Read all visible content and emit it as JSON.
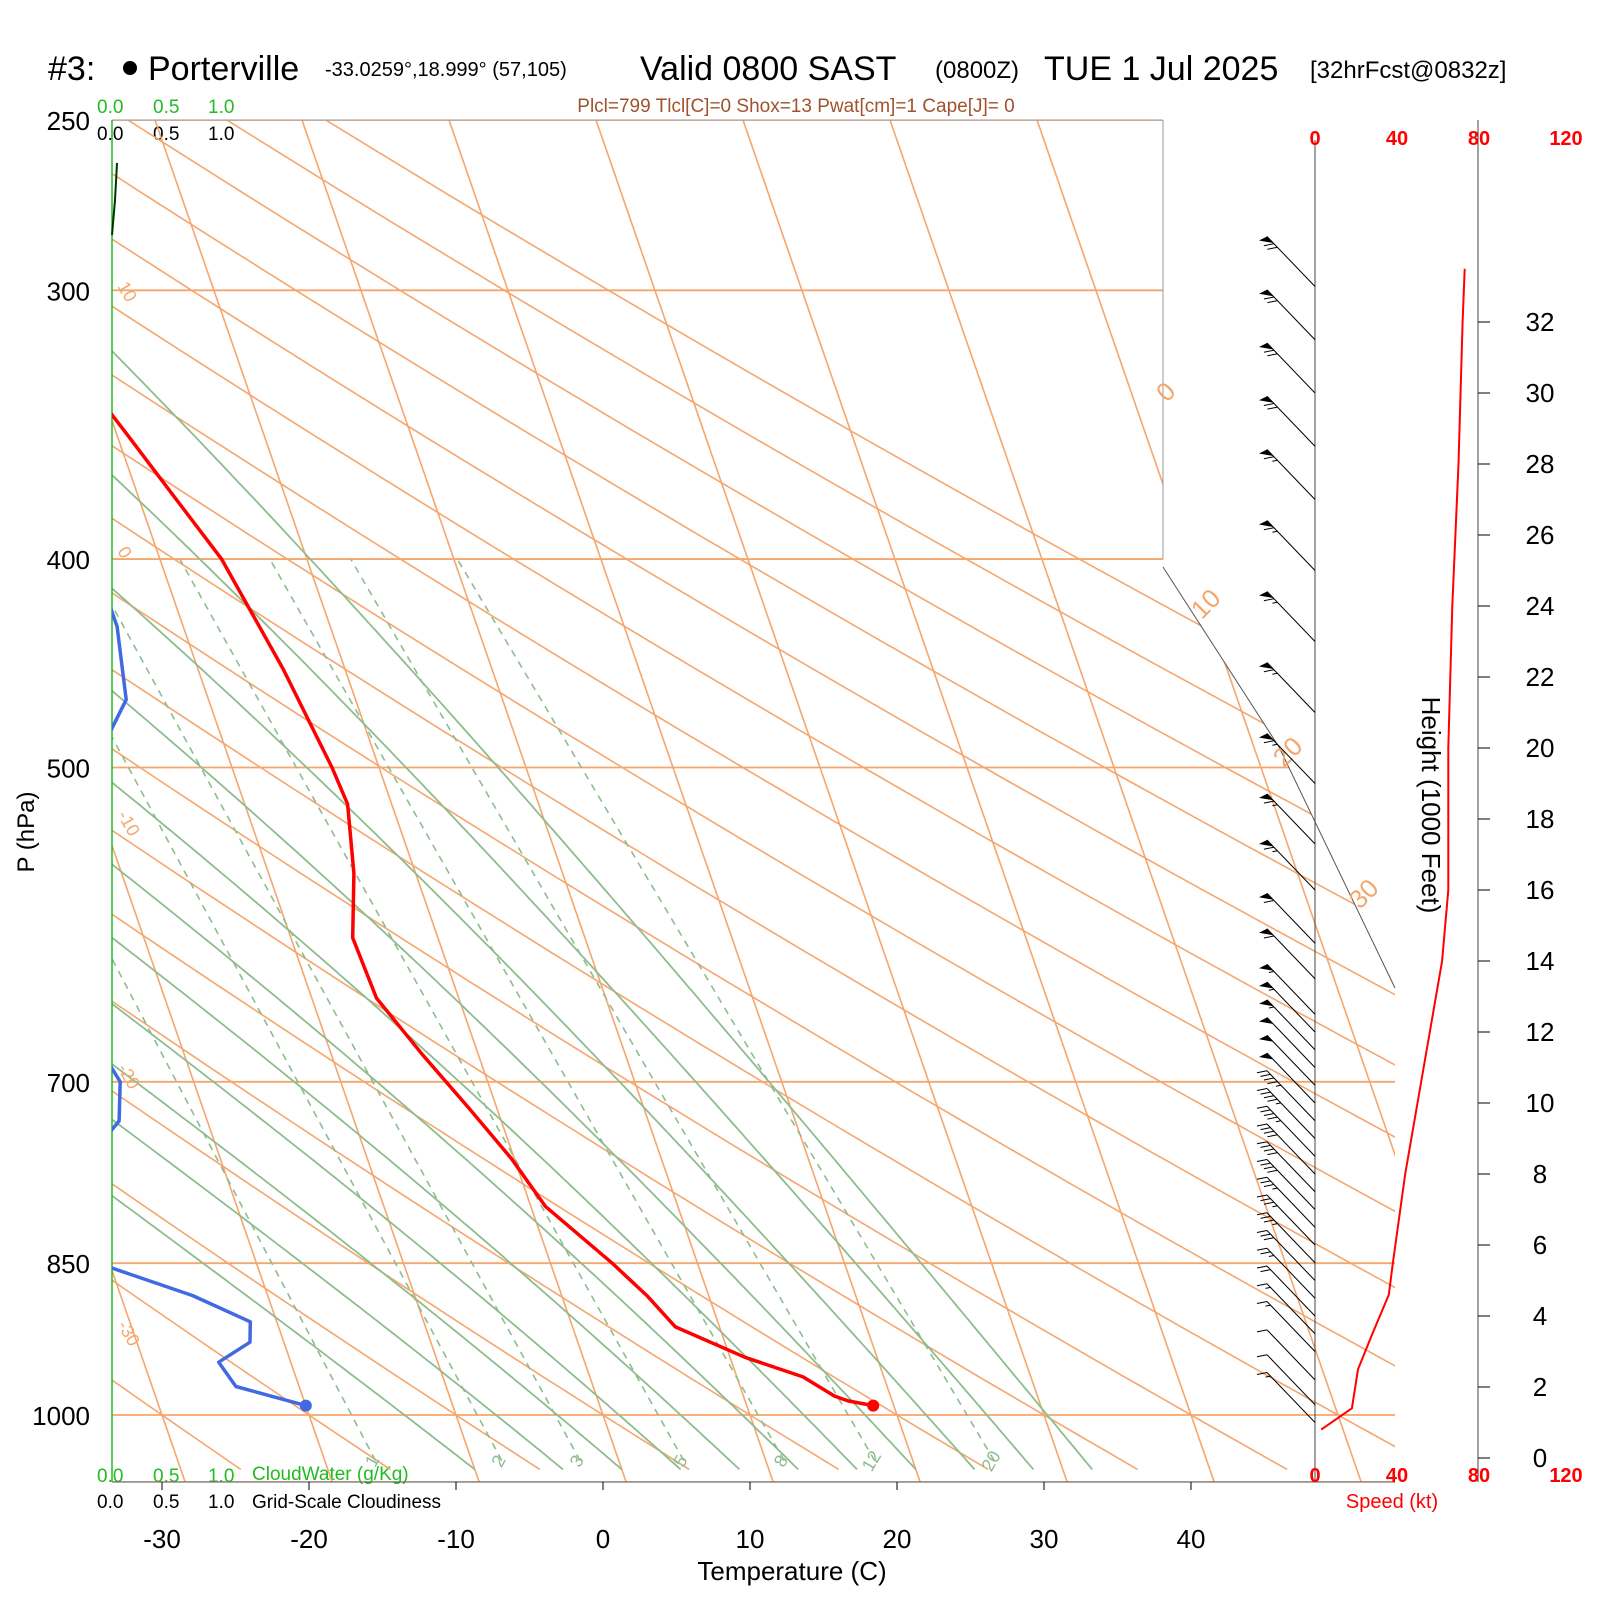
{
  "title": {
    "station_num": "#3:",
    "station_name": "Porterville",
    "coords": "-33.0259°,18.999° (57,105)",
    "valid": "Valid 0800 SAST",
    "zulu": "(0800Z)",
    "date": "TUE 1 Jul 2025",
    "fcst": "[32hrFcst@0832z]"
  },
  "indices": "Plcl=799 Tlcl[C]=0 Shox=13 Pwat[cm]=1 Cape[J]= 0",
  "cloud_scales": {
    "cloudwater_ticks": [
      "0.0",
      "0.5",
      "1.0"
    ],
    "cloudiness_ticks": [
      "0.0",
      "0.5",
      "1.0"
    ],
    "cloudwater_label": "CloudWater (g/Kg)",
    "cloudiness_label": "Grid-Scale Cloudiness"
  },
  "axes": {
    "xlabel": "Temperature (C)",
    "ylabel": "P (hPa)",
    "height_label": "Height (1000 Feet)",
    "speed_label": "Speed (kt)",
    "x_ticks": [
      -30,
      -20,
      -10,
      0,
      10,
      20,
      30,
      40
    ],
    "p_ticks": [
      250,
      300,
      400,
      500,
      700,
      850,
      1000
    ],
    "height_ticks": [
      0,
      2,
      4,
      6,
      8,
      10,
      12,
      14,
      16,
      18,
      20,
      22,
      24,
      26,
      28,
      30,
      32
    ],
    "speed_ticks": [
      "0",
      "40",
      "80",
      "120"
    ],
    "temp_range": [
      -30,
      40
    ],
    "p_range": [
      250,
      1000
    ]
  },
  "isotherm_labels": [
    "10",
    "0",
    "-10",
    "-20",
    "-30"
  ],
  "isotherm_labels_right": [
    "0",
    "10",
    "20",
    "30"
  ],
  "mixing_ratio_labels": [
    "1",
    "2",
    "3",
    "5",
    "8",
    "12",
    "20"
  ],
  "colors": {
    "temperature": "#ff0000",
    "dewpoint": "#4169e1",
    "isotherm": "#f5a66d",
    "adiabat": "#8fbc8f",
    "cloudwater": "#22bb22",
    "indices": "#a0522d",
    "speed": "#ff0000"
  },
  "chart_data": {
    "type": "line",
    "title": "Valid 0800 SAST (0800Z) TUE 1 Jul 2025",
    "xlabel": "Temperature (C)",
    "ylabel": "P (hPa)",
    "grid": true,
    "series": [
      {
        "name": "Temperature",
        "points": [
          [
            268,
            -17.5
          ],
          [
            300,
            -13.5
          ],
          [
            325,
            -11.3
          ],
          [
            350,
            -9.3
          ],
          [
            375,
            -7.5
          ],
          [
            400,
            -5.8
          ],
          [
            450,
            -4.2
          ],
          [
            500,
            -3.2
          ],
          [
            520,
            -3.0
          ],
          [
            560,
            -4.2
          ],
          [
            600,
            -5.8
          ],
          [
            640,
            -5.6
          ],
          [
            680,
            -3.8
          ],
          [
            720,
            -1.9
          ],
          [
            760,
            -0.2
          ],
          [
            800,
            1.0
          ],
          [
            850,
            4.2
          ],
          [
            880,
            5.8
          ],
          [
            910,
            7.0
          ],
          [
            940,
            11.0
          ],
          [
            960,
            14.5
          ],
          [
            980,
            16.2
          ],
          [
            985,
            17.0
          ],
          [
            990,
            18.6
          ]
        ]
      },
      {
        "name": "Dewpoint",
        "points": [
          [
            268,
            -26.0
          ],
          [
            300,
            -22.7
          ],
          [
            320,
            -21.8
          ],
          [
            340,
            -20.3
          ],
          [
            370,
            -16.3
          ],
          [
            393,
            -14.5
          ],
          [
            430,
            -14.5
          ],
          [
            465,
            -15.6
          ],
          [
            500,
            -19.5
          ],
          [
            530,
            -23.3
          ],
          [
            570,
            -26.5
          ],
          [
            610,
            -27.3
          ],
          [
            660,
            -26.0
          ],
          [
            700,
            -25.0
          ],
          [
            730,
            -26.0
          ],
          [
            760,
            -29.0
          ],
          [
            790,
            -32.4
          ],
          [
            820,
            -33.6
          ],
          [
            850,
            -30.8
          ],
          [
            880,
            -25.1
          ],
          [
            905,
            -21.8
          ],
          [
            925,
            -22.3
          ],
          [
            945,
            -24.9
          ],
          [
            970,
            -24.3
          ],
          [
            990,
            -20.0
          ]
        ]
      }
    ],
    "wind_speed_profile": {
      "name": "Speed (kt)",
      "points": [
        [
          0.8,
          3
        ],
        [
          1.4,
          18
        ],
        [
          2.5,
          21
        ],
        [
          3.5,
          28
        ],
        [
          4.6,
          36
        ],
        [
          5.5,
          38
        ],
        [
          8,
          44
        ],
        [
          10,
          50
        ],
        [
          12,
          56
        ],
        [
          14,
          62
        ],
        [
          16,
          65
        ],
        [
          18,
          65
        ],
        [
          20,
          65
        ],
        [
          24,
          67
        ],
        [
          28,
          70
        ],
        [
          32,
          72
        ],
        [
          33.5,
          73
        ]
      ]
    },
    "wind_barbs": [
      {
        "h": 1,
        "spd": 15
      },
      {
        "h": 1.5,
        "spd": 10
      },
      {
        "h": 2.2,
        "spd": 10
      },
      {
        "h": 3,
        "spd": 15
      },
      {
        "h": 3.5,
        "spd": 15
      },
      {
        "h": 4,
        "spd": 20
      },
      {
        "h": 4.5,
        "spd": 25
      },
      {
        "h": 5,
        "spd": 30
      },
      {
        "h": 5.5,
        "spd": 35
      },
      {
        "h": 6,
        "spd": 35
      },
      {
        "h": 6.5,
        "spd": 35
      },
      {
        "h": 7,
        "spd": 40
      },
      {
        "h": 7.5,
        "spd": 40
      },
      {
        "h": 8,
        "spd": 40
      },
      {
        "h": 8.5,
        "spd": 45
      },
      {
        "h": 9,
        "spd": 45
      },
      {
        "h": 9.5,
        "spd": 45
      },
      {
        "h": 10,
        "spd": 50
      },
      {
        "h": 10.5,
        "spd": 50
      },
      {
        "h": 11,
        "spd": 50
      },
      {
        "h": 11.5,
        "spd": 55
      },
      {
        "h": 12,
        "spd": 55
      },
      {
        "h": 12.5,
        "spd": 55
      },
      {
        "h": 13.5,
        "spd": 60
      },
      {
        "h": 14.5,
        "spd": 60
      },
      {
        "h": 16,
        "spd": 65
      },
      {
        "h": 17.3,
        "spd": 65
      },
      {
        "h": 19,
        "spd": 65
      },
      {
        "h": 21,
        "spd": 65
      },
      {
        "h": 23,
        "spd": 65
      },
      {
        "h": 25,
        "spd": 65
      },
      {
        "h": 27,
        "spd": 65
      },
      {
        "h": 28.5,
        "spd": 70
      },
      {
        "h": 30,
        "spd": 70
      },
      {
        "h": 31.5,
        "spd": 70
      },
      {
        "h": 33,
        "spd": 70
      }
    ]
  }
}
